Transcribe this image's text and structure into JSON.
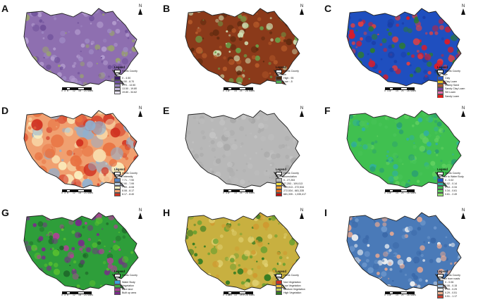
{
  "colors": {
    "border": "#222222"
  },
  "panels": [
    {
      "label": "A",
      "fill": "#8e6fb0",
      "texture": [
        "#6e4f99",
        "#b39ccf",
        "#9f8ac4",
        "#9aa66a"
      ],
      "legend": {
        "county": "Harris County",
        "title": "Slope",
        "items": [
          {
            "text": "0 - 4.50",
            "color": "#3b1d67"
          },
          {
            "text": "4.50 - 8.70",
            "color": "#6d4ea0"
          },
          {
            "text": "8.70 - 13.50",
            "color": "#9a85c0"
          },
          {
            "text": "13.50 - 19.80",
            "color": "#c5b8dc"
          },
          {
            "text": "19.80 - 34.62",
            "color": "#e8e2f0"
          }
        ]
      },
      "scale": [
        "0",
        "3",
        "6",
        "12",
        "18",
        "24"
      ],
      "scale_unit": "Miles",
      "north_icon": "north-arrow"
    },
    {
      "label": "B",
      "fill": "#8b3a1a",
      "texture": [
        "#5d2a0f",
        "#b55a2a",
        "#6aa24a",
        "#cfe0b4"
      ],
      "legend": {
        "county": "Harris County",
        "title": "Elevation",
        "items": [
          {
            "text": "High : 95",
            "color": "#4a2a10"
          },
          {
            "text": "Low : -5",
            "color": "#4caf50"
          }
        ]
      },
      "scale": [
        "0",
        "3.5",
        "7",
        "14",
        "21",
        "28"
      ],
      "scale_unit": "Miles",
      "north_icon": "north-arrow"
    },
    {
      "label": "C",
      "fill": "#1f4fbf",
      "texture": [
        "#e01b24",
        "#1a3fa8",
        "#e24040",
        "#2d7d2d"
      ],
      "legend": {
        "county": "Harris County",
        "title": "Soil Type",
        "items": [
          {
            "text": "Clay",
            "color": "#2a58c9"
          },
          {
            "text": "Clay Loam",
            "color": "#e0c020"
          },
          {
            "text": "Loamy Sand",
            "color": "#b35a2a"
          },
          {
            "text": "Sandy Clay Loam",
            "color": "#7a3fa0"
          },
          {
            "text": "Silt Loam",
            "color": "#e070b0"
          },
          {
            "text": "Sandy Loam",
            "color": "#e0201b"
          },
          {
            "text": "Water",
            "color": "#40c8e0"
          }
        ]
      },
      "scale": [
        "0",
        "3.5",
        "7",
        "14",
        "21",
        "28"
      ],
      "scale_unit": "Miles",
      "north_icon": "north-arrow"
    },
    {
      "label": "D",
      "fill": "#f0a070",
      "texture": [
        "#e87040",
        "#d03020",
        "#fbf0c0",
        "#8fb0d0"
      ],
      "legend": {
        "county": "Harris County",
        "title": "Rainfall Intensity",
        "items": [
          {
            "text": "7.71 - 7.90",
            "color": "#5b85c0"
          },
          {
            "text": "7.90 - 7.99",
            "color": "#b8cce0"
          },
          {
            "text": "7.99 - 8.08",
            "color": "#fbf0c0"
          },
          {
            "text": "8.08 - 8.17",
            "color": "#f0a070"
          },
          {
            "text": "8.17 - 8.40",
            "color": "#d03020"
          }
        ]
      },
      "scale": [
        "0",
        "3",
        "6",
        "12",
        "18",
        "24"
      ],
      "scale_unit": "Miles",
      "north_icon": "north-arrow"
    },
    {
      "label": "E",
      "fill": "#b8b8b8",
      "texture": [
        "#a8a8a8",
        "#c4c4c4",
        "#b0b0b0",
        "#bdbdbd"
      ],
      "legend": {
        "county": "Harris County",
        "title": "Flow accumulation",
        "items": [
          {
            "text": "0 - 27,253",
            "color": "#b8b8b8"
          },
          {
            "text": "27,253 - 109,013",
            "color": "#f0e040"
          },
          {
            "text": "109,013 - 272,534",
            "color": "#f0a030"
          },
          {
            "text": "272,534 - 681,335",
            "color": "#e06020"
          },
          {
            "text": "681,335 - 1,335,417",
            "color": "#c01010"
          }
        ]
      },
      "scale": [
        "0",
        "3.5",
        "7",
        "14",
        "21",
        "28"
      ],
      "scale_unit": "Miles",
      "north_icon": "north-arrow"
    },
    {
      "label": "F",
      "fill": "#40c050",
      "texture": [
        "#2aa070",
        "#60d060",
        "#30b0a0",
        "#48c458"
      ],
      "legend": {
        "county": "Harris County",
        "title": "Distance to Water Body",
        "items": [
          {
            "text": "0 - 0.02",
            "color": "#2050c0"
          },
          {
            "text": "0.02 - 0.14",
            "color": "#30b0a0"
          },
          {
            "text": "0.14 - 0.34",
            "color": "#40c050"
          },
          {
            "text": "0.34 - 0.61",
            "color": "#60d060"
          },
          {
            "text": "0.61 - 2.49",
            "color": "#90e070"
          }
        ]
      },
      "scale": [
        "0",
        "3.5",
        "7",
        "14",
        "21",
        "28"
      ],
      "scale_unit": "Miles",
      "north_icon": "north-arrow"
    },
    {
      "label": "G",
      "fill": "#2e9e3a",
      "texture": [
        "#7a2a8c",
        "#58c030",
        "#b04098",
        "#1f6a2a"
      ],
      "legend": {
        "county": "Harris County",
        "title": "LULC",
        "items": [
          {
            "text": "Water Body",
            "color": "#40a0e0"
          },
          {
            "text": "Vegetation",
            "color": "#40b040"
          },
          {
            "text": "Bare land",
            "color": "#b04098"
          },
          {
            "text": "Built up area",
            "color": "#7a2a8c"
          }
        ]
      },
      "scale": [
        "0",
        "3",
        "6",
        "12",
        "18",
        "24"
      ],
      "scale_unit": "Miles",
      "north_icon": "north-arrow"
    },
    {
      "label": "H",
      "fill": "#c8b040",
      "texture": [
        "#2e7a20",
        "#e0d070",
        "#6aa030",
        "#d09a30"
      ],
      "legend": {
        "county": "Harris County",
        "title": "NDVI",
        "items": [
          {
            "text": "Non Vegetation",
            "color": "#d03020"
          },
          {
            "text": "Low Vegetation",
            "color": "#f0c040"
          },
          {
            "text": "Medium Vegetation",
            "color": "#c0d050"
          },
          {
            "text": "High Vegetation",
            "color": "#2e7a20"
          }
        ]
      },
      "scale": [
        "0",
        "3.25",
        "6.5",
        "13",
        "19.5",
        "26"
      ],
      "scale_unit": "Miles",
      "north_icon": "north-arrow"
    },
    {
      "label": "I",
      "fill": "#4a7ab8",
      "texture": [
        "#3a68a8",
        "#6e98cc",
        "#f3f3f3",
        "#e8a890"
      ],
      "legend": {
        "county": "Harris County",
        "title": "Distance from roads",
        "items": [
          {
            "text": "0 - 0.06",
            "color": "#4a7ab8"
          },
          {
            "text": "0.06 - 0.15",
            "color": "#a8c4e0"
          },
          {
            "text": "0.15 - 0.29",
            "color": "#f3f3f3"
          },
          {
            "text": "0.29 - 0.51",
            "color": "#f0b090"
          },
          {
            "text": "0.51 - 1.17",
            "color": "#d04030"
          }
        ]
      },
      "scale": [
        "0",
        "3.5",
        "7",
        "14",
        "21",
        "28"
      ],
      "scale_unit": "Miles",
      "north_icon": "north-arrow"
    }
  ]
}
